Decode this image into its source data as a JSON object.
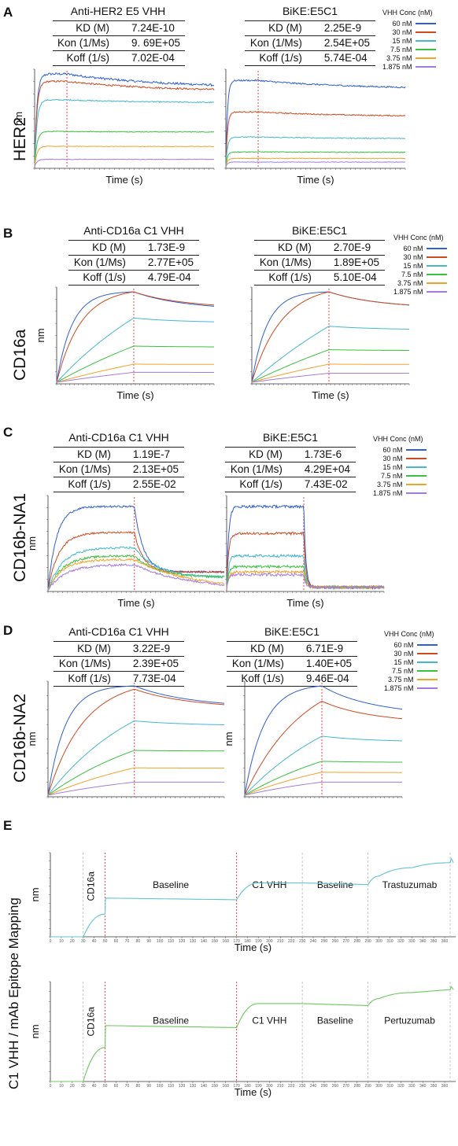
{
  "figure": {
    "legend_title": "VHH Conc (nM)",
    "legend_items": [
      "60 nM",
      "30 nM",
      "15 nM",
      "7.5 nM",
      "3.75 nM",
      "1.875 nM"
    ],
    "series_colors": [
      "#2f5fd6",
      "#cf4a1f",
      "#45b8cf",
      "#39c13f",
      "#f4a22a",
      "#a57be0"
    ]
  },
  "panels": [
    {
      "letter": "A",
      "row_label": "HER2",
      "tables": [
        {
          "title": "Anti-HER2 E5 VHH",
          "rows": [
            [
              "KD (M)",
              "7.24E-10"
            ],
            [
              "Kon (1/Ms)",
              "9. 69E+05"
            ],
            [
              "Koff (1/s)",
              "7.02E-04"
            ]
          ]
        },
        {
          "title": "BiKE:E5C1",
          "rows": [
            [
              "KD (M)",
              "2.25E-9"
            ],
            [
              "Kon (1/Ms)",
              "2.54E+05"
            ],
            [
              "Koff (1/s)",
              "5.74E-04"
            ]
          ]
        }
      ]
    },
    {
      "letter": "B",
      "row_label": "CD16a",
      "tables": [
        {
          "title": "Anti-CD16a C1 VHH",
          "rows": [
            [
              "KD (M)",
              "1.73E-9"
            ],
            [
              "Kon (1/Ms)",
              "2.77E+05"
            ],
            [
              "Koff (1/s)",
              "4.79E-04"
            ]
          ]
        },
        {
          "title": "BiKE:E5C1",
          "rows": [
            [
              "KD (M)",
              "2.70E-9"
            ],
            [
              "Kon (1/Ms)",
              "1.89E+05"
            ],
            [
              "Koff (1/s)",
              "5.10E-04"
            ]
          ]
        }
      ]
    },
    {
      "letter": "C",
      "row_label": "CD16b-NA1",
      "tables": [
        {
          "title": "Anti-CD16a C1 VHH",
          "rows": [
            [
              "KD (M)",
              "1.19E-7"
            ],
            [
              "Kon (1/Ms)",
              "2.13E+05"
            ],
            [
              "Koff (1/s)",
              "2.55E-02"
            ]
          ]
        },
        {
          "title": "BiKE:E5C1",
          "rows": [
            [
              "KD (M)",
              "1.73E-6"
            ],
            [
              "Kon (1/Ms)",
              "4.29E+04"
            ],
            [
              "Koff (1/s)",
              "7.43E-02"
            ]
          ]
        }
      ]
    },
    {
      "letter": "D",
      "row_label": "CD16b-NA2",
      "tables": [
        {
          "title": "Anti-CD16a C1 VHH",
          "rows": [
            [
              "KD (M)",
              "3.22E-9"
            ],
            [
              "Kon (1/Ms)",
              "2.39E+05"
            ],
            [
              "Koff (1/s)",
              "7.73E-04"
            ]
          ]
        },
        {
          "title": "BiKE:E5C1",
          "rows": [
            [
              "KD (M)",
              "6.71E-9"
            ],
            [
              "Kon (1/Ms)",
              "1.40E+05"
            ],
            [
              "Koff (1/s)",
              "9.46E-04"
            ]
          ]
        }
      ]
    },
    {
      "letter": "E",
      "row_label": "C1 VHH / mAb Epitope Mapping"
    }
  ],
  "chart_data": [
    {
      "id": "A1",
      "type": "line",
      "panel": "A",
      "xlabel": "Time (s)",
      "ylabel": "nm",
      "assoc_end_fraction": 0.18,
      "series": [
        {
          "name": "60 nM",
          "plateau": 1.0,
          "k_on": 14,
          "k_off": 0.45,
          "noise": 0.012
        },
        {
          "name": "30 nM",
          "plateau": 0.92,
          "k_on": 14,
          "k_off": 0.36,
          "noise": 0.009
        },
        {
          "name": "15 nM",
          "plateau": 0.72,
          "k_on": 14,
          "k_off": 0.14,
          "noise": 0.006
        },
        {
          "name": "7.5 nM",
          "plateau": 0.38,
          "k_on": 14,
          "k_off": 0.05,
          "noise": 0.004
        },
        {
          "name": "3.75 nM",
          "plateau": 0.22,
          "k_on": 14,
          "k_off": 0.03,
          "noise": 0.003
        },
        {
          "name": "1.875 nM",
          "plateau": 0.08,
          "k_on": 14,
          "k_off": 0.0,
          "noise": 0.003
        }
      ]
    },
    {
      "id": "A2",
      "type": "line",
      "panel": "A",
      "xlabel": "Time (s)",
      "ylabel": "",
      "assoc_end_fraction": 0.18,
      "series": [
        {
          "name": "60 nM",
          "plateau": 0.93,
          "k_on": 20,
          "k_off": 0.3,
          "noise": 0.008
        },
        {
          "name": "30 nM",
          "plateau": 0.59,
          "k_on": 20,
          "k_off": 0.26,
          "noise": 0.006
        },
        {
          "name": "15 nM",
          "plateau": 0.32,
          "k_on": 20,
          "k_off": 0.18,
          "noise": 0.005
        },
        {
          "name": "7.5 nM",
          "plateau": 0.16,
          "k_on": 20,
          "k_off": 0.1,
          "noise": 0.004
        },
        {
          "name": "3.75 nM",
          "plateau": 0.09,
          "k_on": 20,
          "k_off": 0.05,
          "noise": 0.003
        },
        {
          "name": "1.875 nM",
          "plateau": 0.05,
          "k_on": 20,
          "k_off": 0.0,
          "noise": 0.003
        }
      ]
    },
    {
      "id": "B1",
      "type": "line",
      "panel": "B",
      "xlabel": "Time (s)",
      "ylabel": "nm",
      "assoc_end_fraction": 0.49,
      "series": [
        {
          "name": "60 nM",
          "plateau": 1.0,
          "k_on": 5,
          "k_off": 0.6,
          "noise": 0.0,
          "cap": 1.0
        },
        {
          "name": "30 nM",
          "plateau": 1.0,
          "k_on": 3.2,
          "k_off": 0.55,
          "noise": 0.0,
          "cap": 1.0
        },
        {
          "name": "15 nM",
          "plateau": 0.71,
          "k_on": 0.55,
          "k_off": 0.22,
          "noise": 0.0
        },
        {
          "name": "7.5 nM",
          "plateau": 0.4,
          "k_on": 0.35,
          "k_off": 0.08,
          "noise": 0.0
        },
        {
          "name": "3.75 nM",
          "plateau": 0.2,
          "k_on": 0.3,
          "k_off": 0.05,
          "noise": 0.0
        },
        {
          "name": "1.875 nM",
          "plateau": 0.11,
          "k_on": 0.3,
          "k_off": 0.03,
          "noise": 0.0
        }
      ]
    },
    {
      "id": "B2",
      "type": "line",
      "panel": "B",
      "xlabel": "Time (s)",
      "ylabel": "",
      "assoc_end_fraction": 0.49,
      "series": [
        {
          "name": "60 nM",
          "plateau": 1.0,
          "k_on": 5,
          "k_off": 0.55,
          "noise": 0.0,
          "cap": 1.0
        },
        {
          "name": "30 nM",
          "plateau": 1.0,
          "k_on": 2.6,
          "k_off": 0.55,
          "noise": 0.0,
          "cap": 1.0
        },
        {
          "name": "15 nM",
          "plateau": 0.62,
          "k_on": 0.4,
          "k_off": 0.2,
          "noise": 0.0
        },
        {
          "name": "7.5 nM",
          "plateau": 0.36,
          "k_on": 0.3,
          "k_off": 0.08,
          "noise": 0.0
        },
        {
          "name": "3.75 nM",
          "plateau": 0.2,
          "k_on": 0.3,
          "k_off": 0.05,
          "noise": 0.0
        },
        {
          "name": "1.875 nM",
          "plateau": 0.1,
          "k_on": 0.3,
          "k_off": 0.02,
          "noise": 0.0
        }
      ]
    },
    {
      "id": "C1",
      "type": "line",
      "panel": "C",
      "xlabel": "Time (s)",
      "ylabel": "nm",
      "assoc_end_fraction": 0.49,
      "series": [
        {
          "name": "60 nM",
          "plateau": 0.93,
          "k_on": 10,
          "k_off": 10,
          "noise": 0.01,
          "resid": 0.2
        },
        {
          "name": "30 nM",
          "plateau": 0.64,
          "k_on": 8,
          "k_off": 10,
          "noise": 0.01,
          "resid": 0.2
        },
        {
          "name": "15 nM",
          "plateau": 0.47,
          "k_on": 6,
          "k_off": 4,
          "noise": 0.012,
          "resid": 0.14
        },
        {
          "name": "7.5 nM",
          "plateau": 0.38,
          "k_on": 6,
          "k_off": 4,
          "noise": 0.012,
          "resid": 0.14
        },
        {
          "name": "3.75 nM",
          "plateau": 0.34,
          "k_on": 6,
          "k_off": 3,
          "noise": 0.012,
          "resid": 0.04
        },
        {
          "name": "1.875 nM",
          "plateau": 0.28,
          "k_on": 5,
          "k_off": 3,
          "noise": 0.012,
          "resid": 0.12
        }
      ]
    },
    {
      "id": "C2",
      "type": "line",
      "panel": "C",
      "xlabel": "Time (s)",
      "ylabel": "",
      "assoc_end_fraction": 0.49,
      "series": [
        {
          "name": "60 nM",
          "plateau": 0.93,
          "k_on": 40,
          "k_off": 40,
          "noise": 0.015,
          "resid": 0.03
        },
        {
          "name": "30 nM",
          "plateau": 0.63,
          "k_on": 40,
          "k_off": 40,
          "noise": 0.015,
          "resid": 0.03
        },
        {
          "name": "15 nM",
          "plateau": 0.38,
          "k_on": 40,
          "k_off": 40,
          "noise": 0.015,
          "resid": 0.03
        },
        {
          "name": "7.5 nM",
          "plateau": 0.26,
          "k_on": 40,
          "k_off": 40,
          "noise": 0.015,
          "resid": 0.03
        },
        {
          "name": "3.75 nM",
          "plateau": 0.2,
          "k_on": 40,
          "k_off": 40,
          "noise": 0.015,
          "resid": 0.03
        },
        {
          "name": "1.875 nM",
          "plateau": 0.17,
          "k_on": 40,
          "k_off": 40,
          "noise": 0.015,
          "resid": 0.03
        }
      ]
    },
    {
      "id": "D1",
      "type": "line",
      "panel": "D",
      "xlabel": "",
      "ylabel": "nm",
      "assoc_end_fraction": 0.49,
      "series": [
        {
          "name": "60 nM",
          "plateau": 1.0,
          "k_on": 5,
          "k_off": 0.6,
          "noise": 0.0,
          "cap": 1.0
        },
        {
          "name": "30 nM",
          "plateau": 0.97,
          "k_on": 2.4,
          "k_off": 0.55,
          "noise": 0.0
        },
        {
          "name": "15 nM",
          "plateau": 0.68,
          "k_on": 0.9,
          "k_off": 0.2,
          "noise": 0.0
        },
        {
          "name": "7.5 nM",
          "plateau": 0.41,
          "k_on": 0.7,
          "k_off": 0.05,
          "noise": 0.0
        },
        {
          "name": "3.75 nM",
          "plateau": 0.25,
          "k_on": 0.6,
          "k_off": 0.03,
          "noise": 0.0
        },
        {
          "name": "1.875 nM",
          "plateau": 0.12,
          "k_on": 0.6,
          "k_off": 0.0,
          "noise": 0.0
        }
      ]
    },
    {
      "id": "D2",
      "type": "line",
      "panel": "D",
      "xlabel": "",
      "ylabel": "nm",
      "assoc_end_fraction": 0.49,
      "series": [
        {
          "name": "60 nM",
          "plateau": 1.0,
          "k_on": 4,
          "k_off": 0.8,
          "noise": 0.0,
          "cap": 1.0
        },
        {
          "name": "30 nM",
          "plateau": 0.86,
          "k_on": 1.3,
          "k_off": 0.7,
          "noise": 0.0
        },
        {
          "name": "15 nM",
          "plateau": 0.54,
          "k_on": 0.7,
          "k_off": 0.3,
          "noise": 0.0
        },
        {
          "name": "7.5 nM",
          "plateau": 0.31,
          "k_on": 0.6,
          "k_off": 0.1,
          "noise": 0.0
        },
        {
          "name": "3.75 nM",
          "plateau": 0.21,
          "k_on": 0.6,
          "k_off": 0.05,
          "noise": 0.0
        },
        {
          "name": "1.875 nM",
          "plateau": 0.12,
          "k_on": 0.6,
          "k_off": 0.02,
          "noise": 0.0
        }
      ]
    },
    {
      "id": "E1",
      "type": "line",
      "panel": "E",
      "xlabel": "Time (s)",
      "ylabel": "nm",
      "xlim": [
        0,
        370
      ],
      "ticks": [
        0,
        10,
        20,
        30,
        40,
        50,
        60,
        70,
        80,
        90,
        100,
        110,
        120,
        130,
        140,
        150,
        160,
        170,
        180,
        190,
        200,
        210,
        220,
        230,
        240,
        250,
        260,
        270,
        280,
        290,
        300,
        310,
        320,
        330,
        340,
        350,
        360
      ],
      "phases": [
        "CD16a",
        "Baseline",
        "C1 VHH",
        "Baseline",
        "Trastuzumab"
      ],
      "boundaries": [
        {
          "t": 30,
          "style": "dashed"
        },
        {
          "t": 50,
          "style": "red"
        },
        {
          "t": 170,
          "style": "red"
        },
        {
          "t": 230,
          "style": "dashed"
        },
        {
          "t": 290,
          "style": "dashed"
        },
        {
          "t": 365,
          "style": "dashed"
        }
      ],
      "series": [
        {
          "name": "response",
          "color": "#63c3d6",
          "points": [
            [
              0,
              0
            ],
            [
              30,
              0
            ],
            [
              50,
              0.27
            ],
            [
              50.5,
              0.46
            ],
            [
              170,
              0.44
            ],
            [
              190,
              0.64
            ],
            [
              230,
              0.64
            ],
            [
              290,
              0.62
            ],
            [
              300,
              0.72
            ],
            [
              330,
              0.82
            ],
            [
              365,
              0.88
            ],
            [
              366,
              0.93
            ],
            [
              368,
              0.88
            ]
          ]
        }
      ]
    },
    {
      "id": "E2",
      "type": "line",
      "panel": "E",
      "xlabel": "Time (s)",
      "ylabel": "nm",
      "xlim": [
        0,
        370
      ],
      "ticks": [
        0,
        10,
        20,
        30,
        40,
        50,
        60,
        70,
        80,
        90,
        100,
        110,
        120,
        130,
        140,
        150,
        160,
        170,
        180,
        190,
        200,
        210,
        220,
        230,
        240,
        250,
        260,
        270,
        280,
        290,
        300,
        310,
        320,
        330,
        340,
        350,
        360
      ],
      "phases": [
        "CD16a",
        "Baseline",
        "C1 VHH",
        "Baseline",
        "Pertuzumab"
      ],
      "boundaries": [
        {
          "t": 30,
          "style": "dashed"
        },
        {
          "t": 50,
          "style": "red"
        },
        {
          "t": 170,
          "style": "red"
        },
        {
          "t": 230,
          "style": "dashed"
        },
        {
          "t": 290,
          "style": "dashed"
        },
        {
          "t": 365,
          "style": "dashed"
        }
      ],
      "series": [
        {
          "name": "response",
          "color": "#6cc95e",
          "points": [
            [
              0,
              0
            ],
            [
              30,
              0
            ],
            [
              50,
              0.34
            ],
            [
              50.5,
              0.56
            ],
            [
              170,
              0.54
            ],
            [
              190,
              0.78
            ],
            [
              230,
              0.78
            ],
            [
              290,
              0.76
            ],
            [
              300,
              0.83
            ],
            [
              330,
              0.89
            ],
            [
              365,
              0.92
            ],
            [
              366,
              0.95
            ],
            [
              368,
              0.92
            ]
          ]
        }
      ]
    }
  ]
}
